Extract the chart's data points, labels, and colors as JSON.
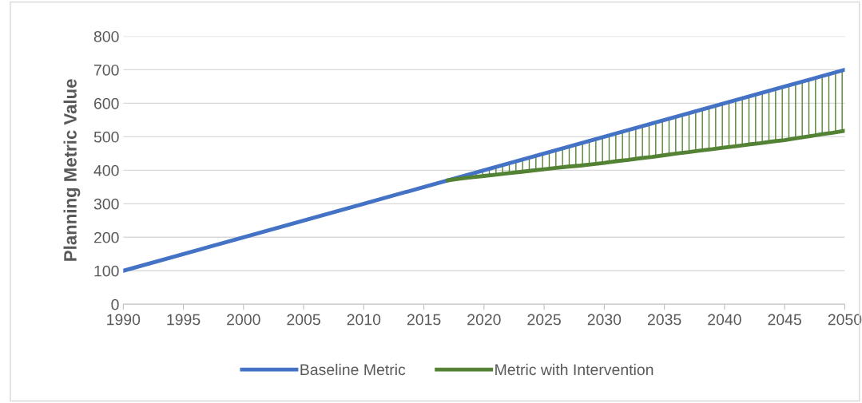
{
  "chart_data": {
    "type": "line",
    "ylabel": "Planning Metric Value",
    "xlim": [
      1990,
      2050
    ],
    "xticks": [
      1990,
      1995,
      2000,
      2005,
      2010,
      2015,
      2020,
      2025,
      2030,
      2035,
      2040,
      2045,
      2050
    ],
    "ylim": [
      0,
      800
    ],
    "yticks": [
      0,
      100,
      200,
      300,
      400,
      500,
      600,
      700,
      800
    ],
    "grid": "y",
    "legend": "bottom",
    "marker": "none",
    "line_style": "solid",
    "series": [
      {
        "name": "Baseline Metric",
        "color": "#4472c4",
        "x": [
          1990,
          1995,
          2000,
          2005,
          2010,
          2015,
          2020,
          2025,
          2030,
          2035,
          2040,
          2045,
          2050
        ],
        "values": [
          100,
          150,
          200,
          250,
          300,
          350,
          400,
          450,
          500,
          550,
          600,
          650,
          700
        ]
      },
      {
        "name": "Metric with Intervention",
        "color": "#548235",
        "x": [
          2017,
          2018,
          2019,
          2020,
          2021,
          2022,
          2023,
          2024,
          2025,
          2026,
          2027,
          2028,
          2029,
          2030,
          2031,
          2032,
          2033,
          2034,
          2035,
          2036,
          2037,
          2038,
          2039,
          2040,
          2041,
          2042,
          2043,
          2044,
          2045,
          2046,
          2047,
          2048,
          2049,
          2050
        ],
        "values": [
          370,
          375,
          379,
          383,
          387,
          391,
          395,
          399,
          403,
          407,
          411,
          414,
          418,
          422,
          427,
          431,
          436,
          440,
          445,
          450,
          454,
          459,
          463,
          468,
          472,
          477,
          481,
          486,
          490,
          496,
          501,
          507,
          512,
          518
        ],
        "lower": [
          370,
          375,
          379,
          383,
          387,
          391,
          395,
          399,
          403,
          407,
          411,
          414,
          418,
          422,
          427,
          431,
          436,
          440,
          445,
          450,
          454,
          459,
          463,
          468,
          472,
          477,
          481,
          486,
          490,
          496,
          501,
          507,
          512,
          518
        ],
        "upper": [
          370,
          380,
          390,
          400,
          410,
          420,
          430,
          440,
          450,
          460,
          470,
          480,
          490,
          500,
          510,
          520,
          530,
          540,
          550,
          560,
          570,
          580,
          590,
          600,
          610,
          620,
          630,
          640,
          650,
          660,
          670,
          680,
          690,
          700
        ]
      }
    ]
  }
}
